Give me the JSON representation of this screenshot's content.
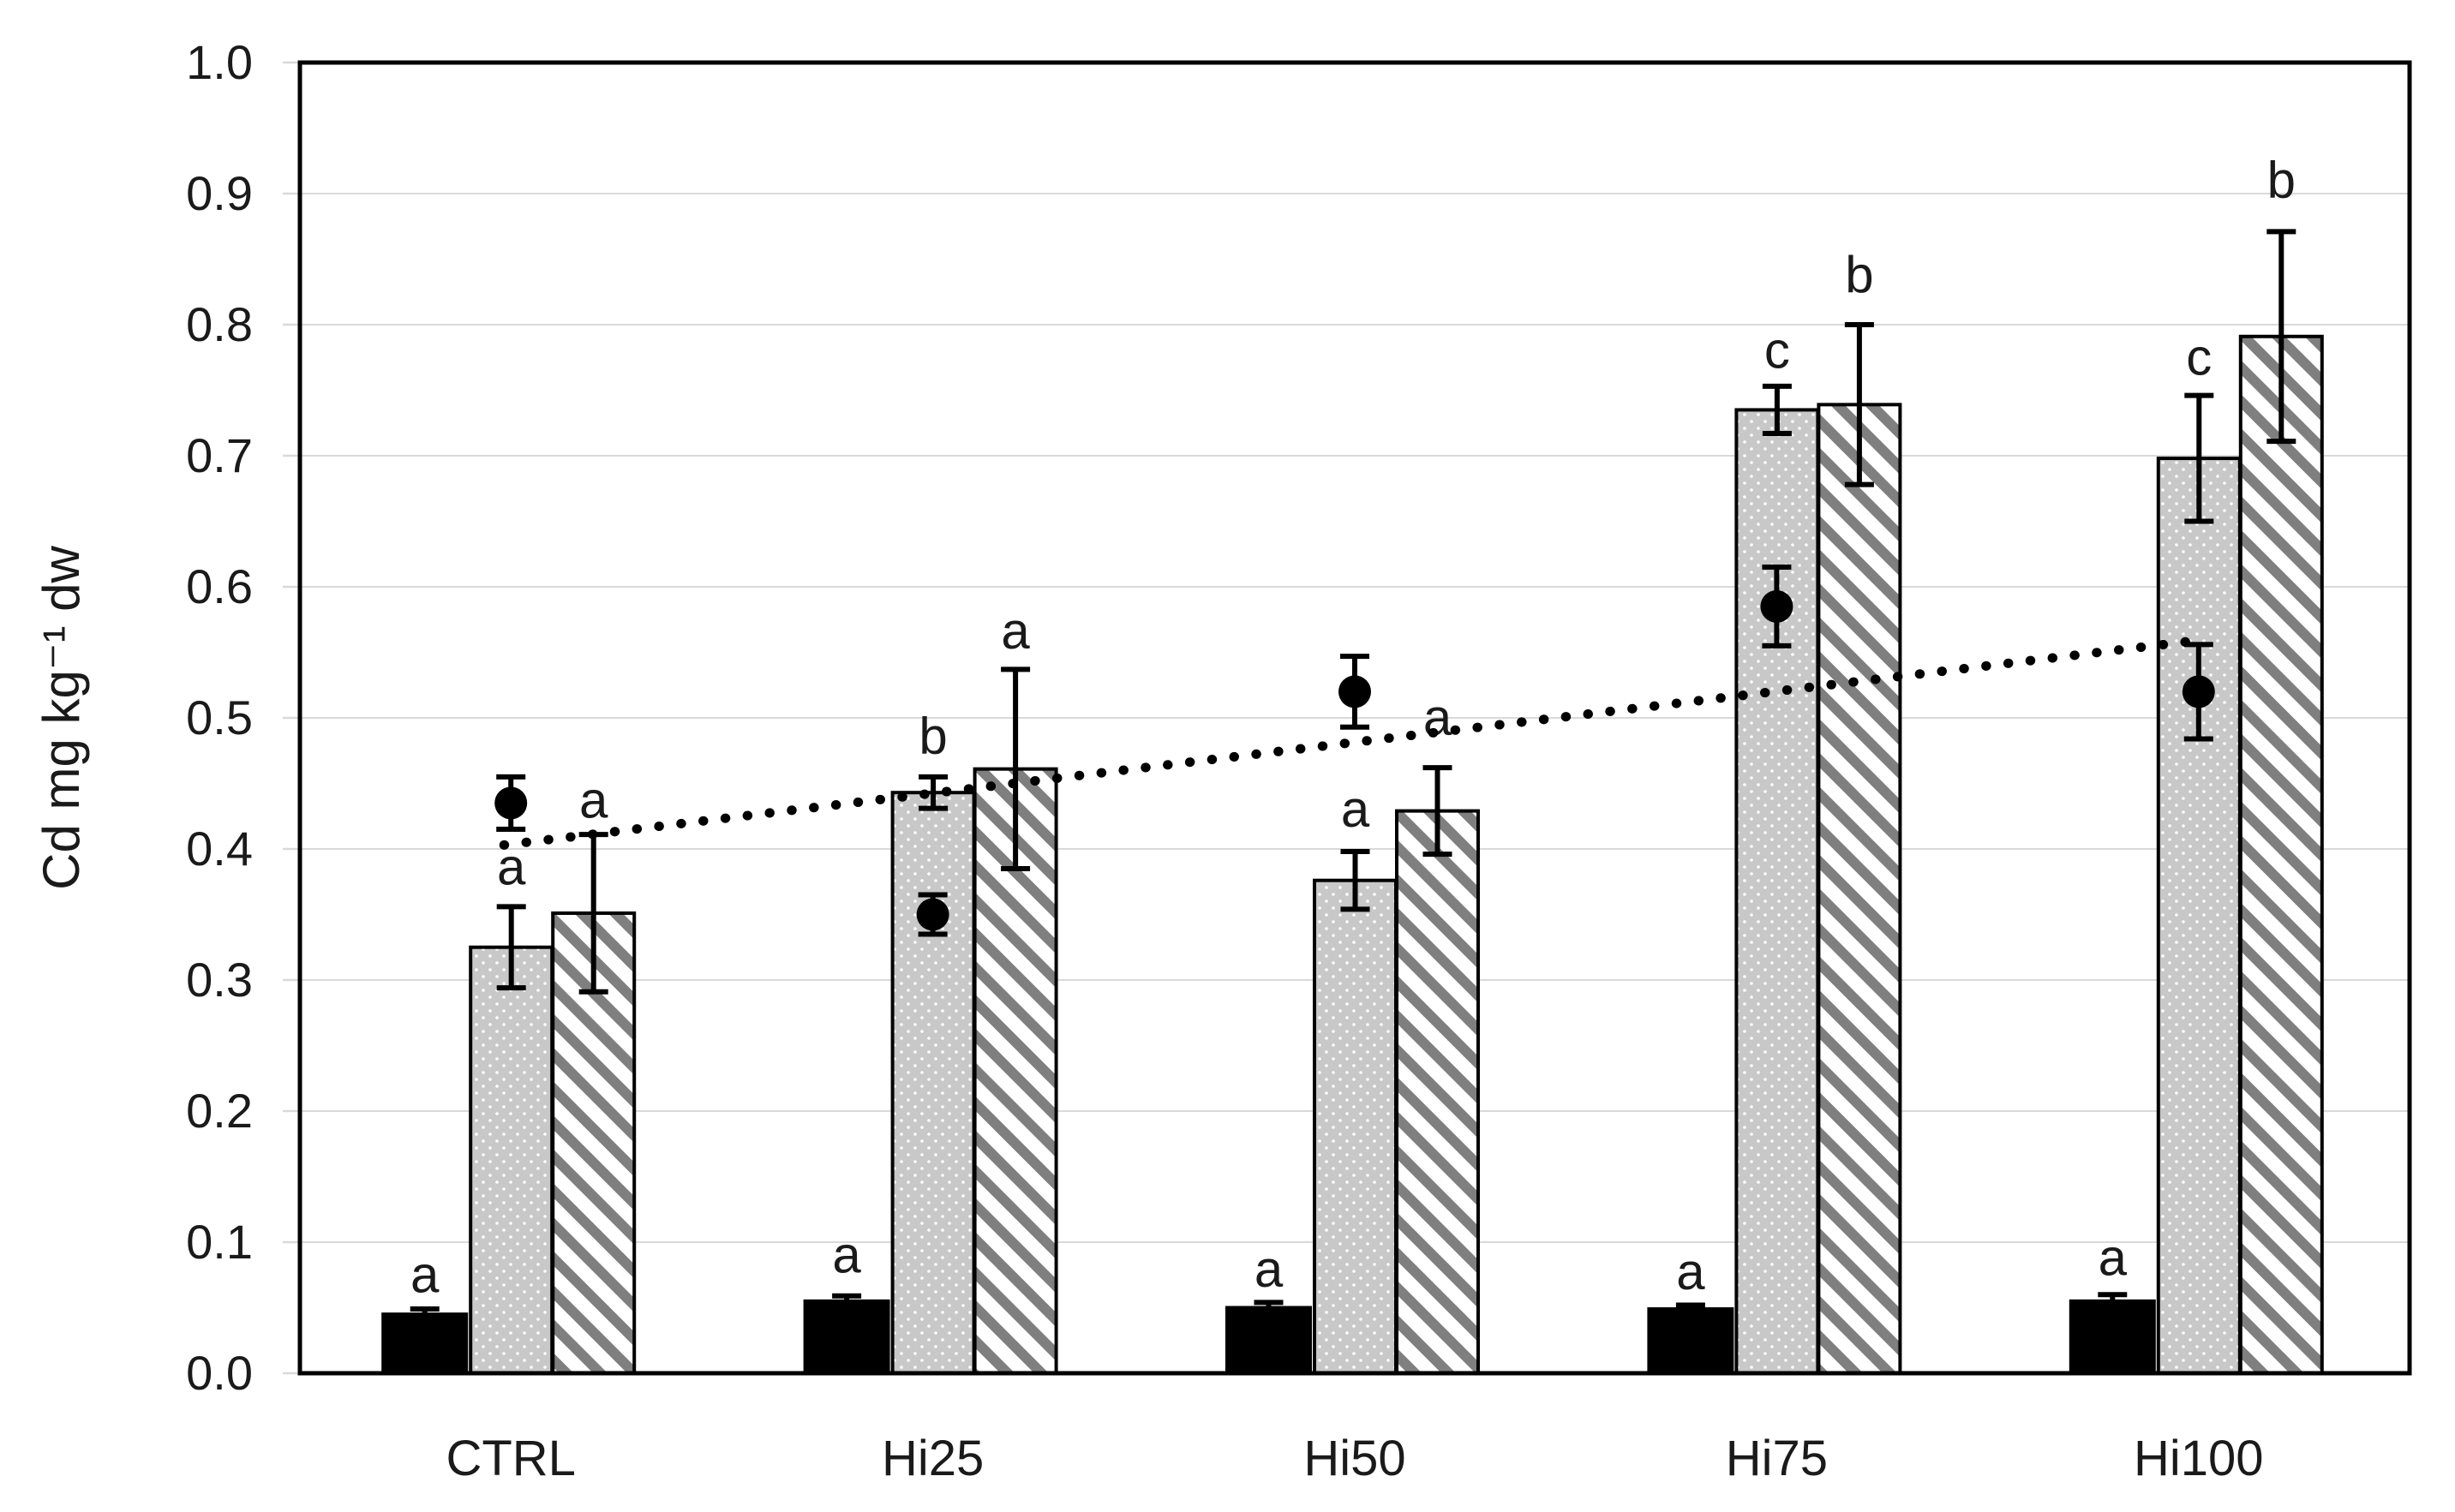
{
  "chart_data": {
    "type": "bar",
    "title": "",
    "xlabel": "",
    "ylabel": "Cd mg kg⁻¹ dw",
    "ylim": [
      0.0,
      1.0
    ],
    "ytick_step": 0.1,
    "ytick_labels": [
      "0.0",
      "0.1",
      "0.2",
      "0.3",
      "0.4",
      "0.5",
      "0.6",
      "0.7",
      "0.8",
      "0.9",
      "1.0"
    ],
    "grid": "horizontal",
    "legend": "none",
    "categories": [
      "CTRL",
      "Hi25",
      "Hi50",
      "Hi75",
      "Hi100"
    ],
    "series": [
      {
        "name": "solid_black",
        "style": "solid-black-bar",
        "values": [
          0.045,
          0.055,
          0.05,
          0.049,
          0.055
        ],
        "errors": [
          0.004,
          0.004,
          0.004,
          0.003,
          0.005
        ],
        "letters": [
          "a",
          "a",
          "a",
          "a",
          "a"
        ],
        "letter_y": [
          0.075,
          0.09,
          0.079,
          0.077,
          0.088
        ]
      },
      {
        "name": "grey_dotted",
        "style": "grey-dotted-fill-bar",
        "values": [
          0.325,
          0.443,
          0.376,
          0.735,
          0.698
        ],
        "errors": [
          0.031,
          0.012,
          0.022,
          0.018,
          0.048
        ],
        "letters": [
          "a",
          "b",
          "a",
          "c",
          "c"
        ],
        "letter_y": [
          0.386,
          0.486,
          0.43,
          0.78,
          0.775
        ]
      },
      {
        "name": "diagonal_hatched",
        "style": "white-diagonal-hatched-bar",
        "values": [
          0.351,
          0.461,
          0.429,
          0.739,
          0.791
        ],
        "errors": [
          0.06,
          0.076,
          0.033,
          0.061,
          0.08
        ],
        "letters": [
          "a",
          "a",
          "a",
          "b",
          "b"
        ],
        "letter_y": [
          0.437,
          0.566,
          0.5,
          0.838,
          0.91
        ]
      }
    ],
    "scatter": {
      "name": "black_dots",
      "values": [
        0.435,
        0.35,
        0.52,
        0.585,
        0.52
      ],
      "errors": [
        0.02,
        0.015,
        0.027,
        0.03,
        0.036
      ]
    },
    "trendline": {
      "style": "dotted",
      "start_value": 0.403,
      "end_value": 0.558
    },
    "colors": {
      "text": "#1a1a1a",
      "axis": "#000000",
      "grid": "#d9d9d9",
      "black_bar": "#000000",
      "grey_fill": "#c8c8c8",
      "hatch_stripe": "#7f7f7f",
      "bar_border": "#000000"
    }
  }
}
